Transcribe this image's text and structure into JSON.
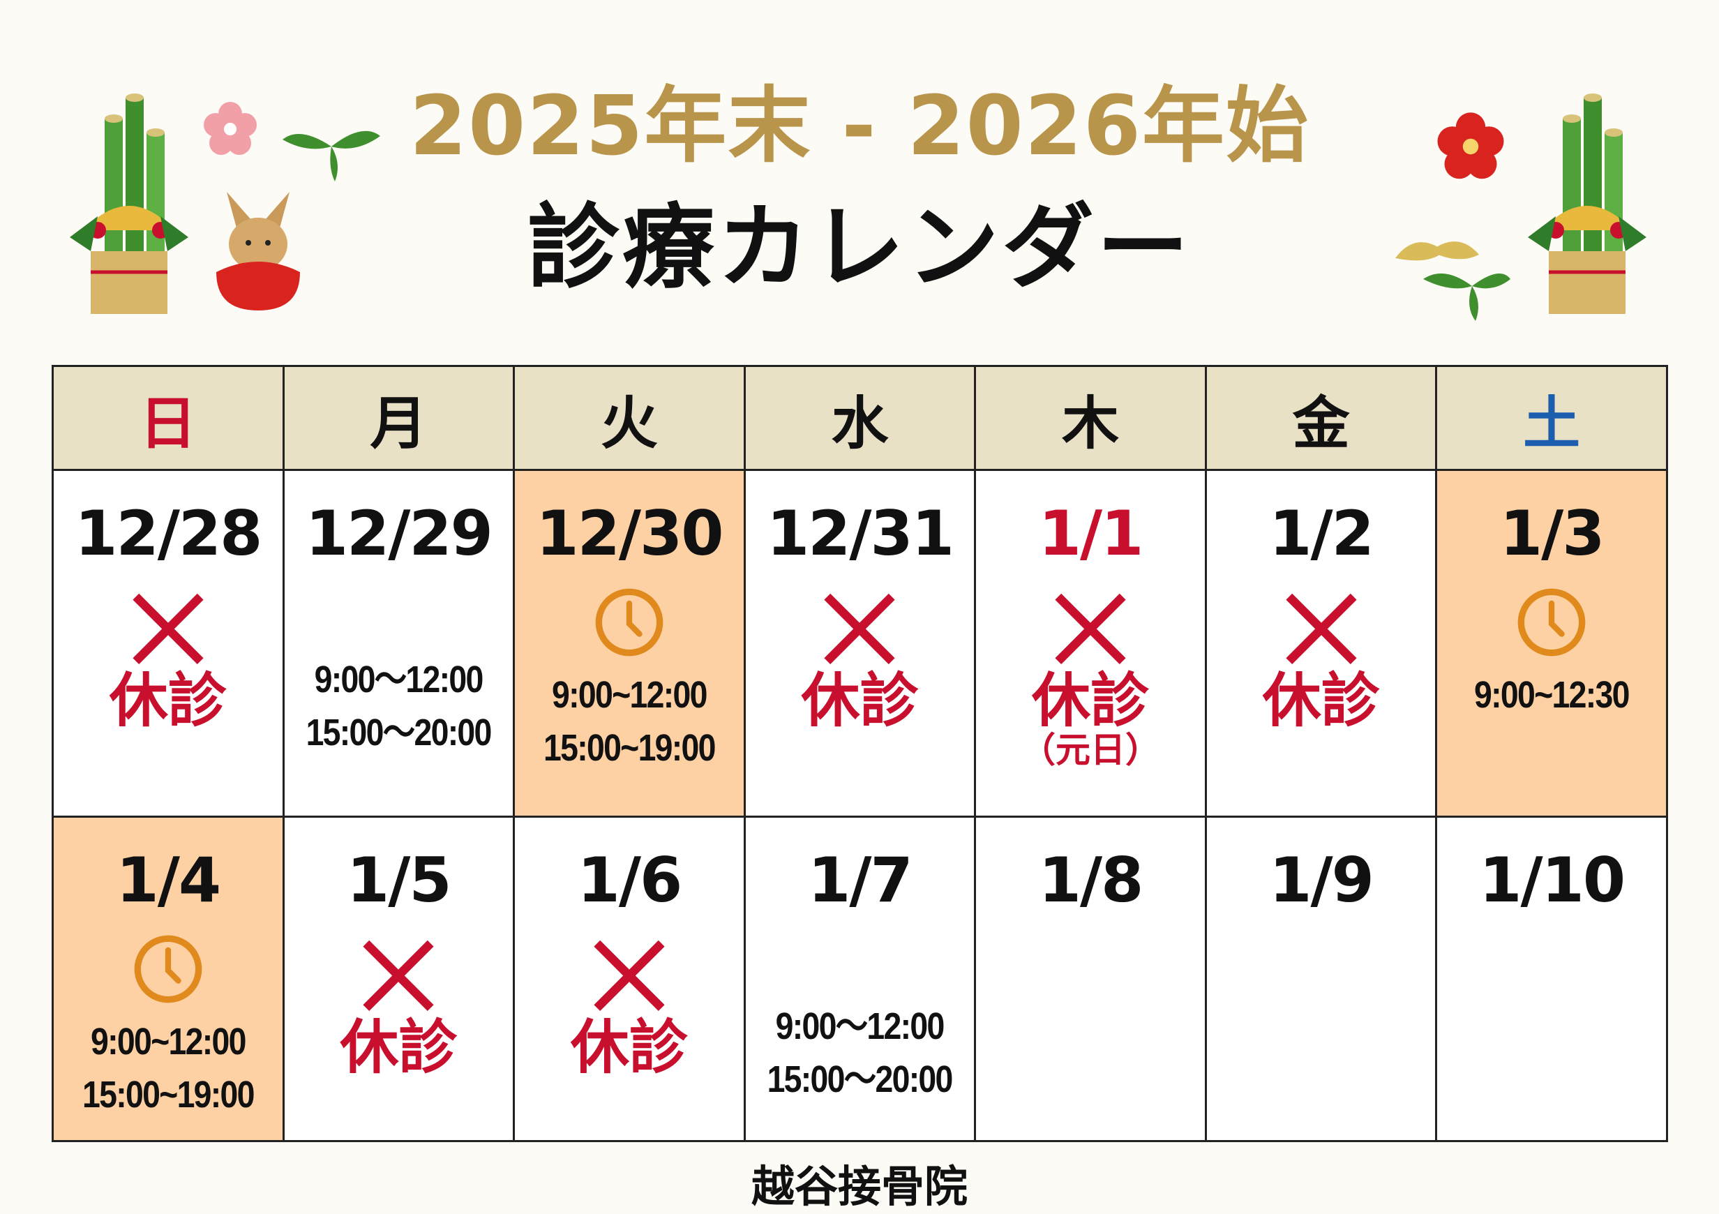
{
  "header": {
    "title_line1": "2025年末 - 2026年始",
    "title_line2": "診療カレンダー"
  },
  "colors": {
    "title_gold": "#b8954a",
    "closed_red": "#c8102e",
    "saturday_blue": "#1d5fae",
    "highlight_orange": "#fdd1a4",
    "clock_orange": "#e08a1e",
    "header_beige": "#e9e1c6"
  },
  "weekdays": [
    "日",
    "月",
    "火",
    "水",
    "木",
    "金",
    "土"
  ],
  "weeks": [
    [
      {
        "date": "12/28",
        "status": "closed",
        "icon": "x-mark-icon",
        "label": "休診"
      },
      {
        "date": "12/29",
        "status": "open",
        "times": [
          "9:00～12:00",
          "15:00～20:00"
        ]
      },
      {
        "date": "12/30",
        "status": "special",
        "highlight": true,
        "icon": "clock-icon",
        "times": [
          "9:00~12:00",
          "15:00~19:00"
        ]
      },
      {
        "date": "12/31",
        "status": "closed",
        "icon": "x-mark-icon",
        "label": "休診"
      },
      {
        "date": "1/1",
        "date_red": true,
        "status": "closed",
        "icon": "x-mark-icon",
        "label": "休診",
        "note": "（元日）"
      },
      {
        "date": "1/2",
        "status": "closed",
        "icon": "x-mark-icon",
        "label": "休診"
      },
      {
        "date": "1/3",
        "status": "special",
        "highlight": true,
        "icon": "clock-icon",
        "times": [
          "9:00~12:30"
        ]
      }
    ],
    [
      {
        "date": "1/4",
        "status": "special",
        "highlight": true,
        "icon": "clock-icon",
        "times": [
          "9:00~12:00",
          "15:00~19:00"
        ]
      },
      {
        "date": "1/5",
        "status": "closed",
        "icon": "x-mark-icon",
        "label": "休診"
      },
      {
        "date": "1/6",
        "status": "closed",
        "icon": "x-mark-icon",
        "label": "休診"
      },
      {
        "date": "1/7",
        "status": "open",
        "times": [
          "9:00～12:00",
          "15:00～20:00"
        ]
      },
      {
        "date": "1/8",
        "status": "none"
      },
      {
        "date": "1/9",
        "status": "none"
      },
      {
        "date": "1/10",
        "status": "none"
      }
    ]
  ],
  "footer": {
    "clinic_name": "越谷接骨院"
  },
  "decorations": [
    "kadomatsu-icon",
    "plum-blossom-icon",
    "bamboo-leaf-icon",
    "rabbit-daruma-icon",
    "pine-icon"
  ]
}
